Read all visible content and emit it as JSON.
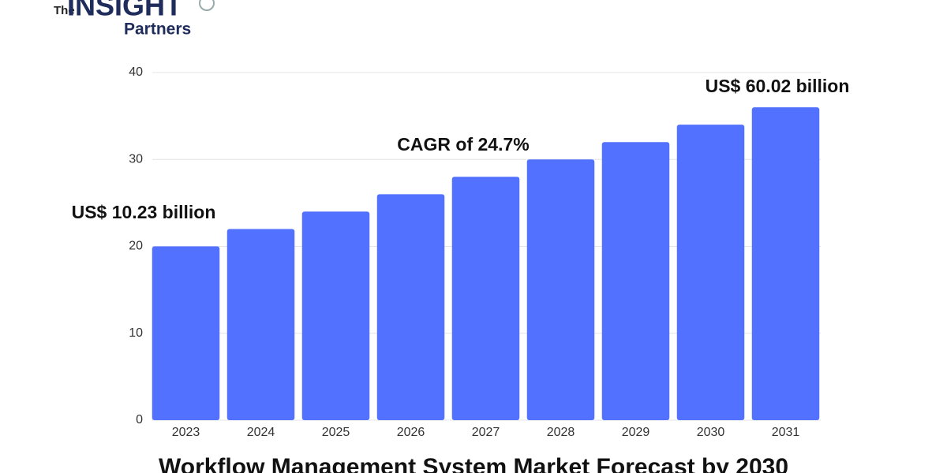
{
  "logo": {
    "line1": "The",
    "line2": "INSIGHT",
    "line3": "Partners"
  },
  "chart_data": {
    "type": "bar",
    "title": "Workflow Management System Market Forecast by 2030",
    "categories": [
      "2023",
      "2024",
      "2025",
      "2026",
      "2027",
      "2028",
      "2029",
      "2030",
      "2031"
    ],
    "values": [
      20,
      22,
      24,
      26,
      28,
      30,
      32,
      34,
      36
    ],
    "color": "#5271ff",
    "ylim": [
      0,
      40
    ],
    "yticks": [
      0,
      10,
      20,
      30,
      40
    ],
    "grid": true,
    "annotations": [
      "US$ 10.23 billion",
      "CAGR of 24.7%",
      "US$ 60.02 billion"
    ]
  }
}
